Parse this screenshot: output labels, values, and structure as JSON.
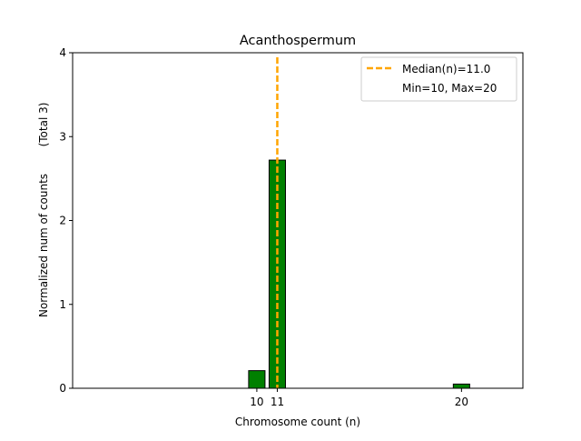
{
  "chart_data": {
    "type": "bar",
    "title": "Acanthospermum",
    "xlabel": "Chromosome count (n)",
    "ylabel": "Normalized num of counts",
    "ylabel_secondary": "(Total 3)",
    "xlim": [
      1,
      23
    ],
    "ylim": [
      0,
      4
    ],
    "x_ticks": [
      10,
      11,
      20
    ],
    "y_ticks": [
      0,
      1,
      2,
      3,
      4
    ],
    "bar_width": 0.8,
    "bars": [
      {
        "x": 10,
        "value": 0.21
      },
      {
        "x": 11,
        "value": 2.72
      },
      {
        "x": 20,
        "value": 0.05
      }
    ],
    "median_line": {
      "x": 11.0,
      "style": "dashed"
    },
    "legend": {
      "position": "top-right",
      "entries": [
        "Median(n)=11.0",
        "Min=10, Max=20"
      ]
    },
    "colors": {
      "bar_fill": "#008000",
      "bar_edge": "#000000",
      "median": "#FFA500"
    },
    "grid": false
  }
}
